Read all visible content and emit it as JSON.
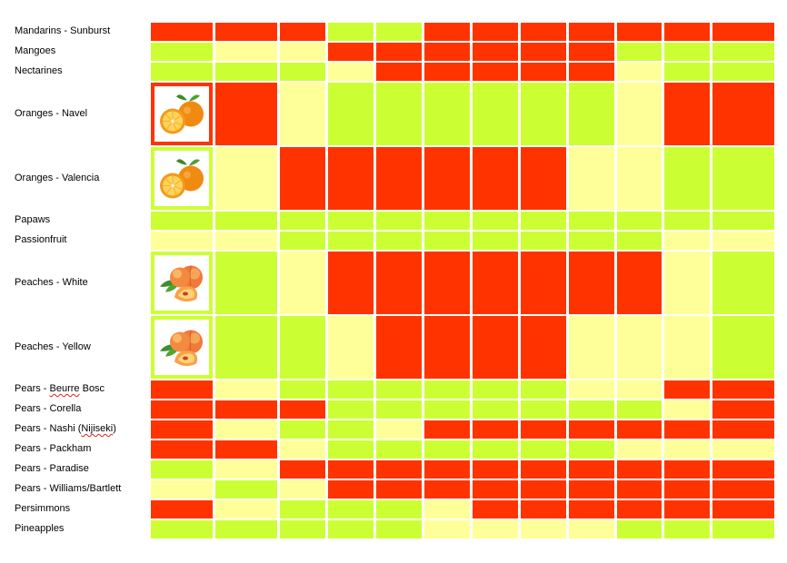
{
  "colors": {
    "R": "#ff3300",
    "G": "#ccff33",
    "Y": "#ffff99"
  },
  "rows": [
    {
      "label": "Mandarins - Sunburst",
      "cells": "RRRGGRRRRRRR"
    },
    {
      "label": "Mangoes",
      "cells": "GYYRRRRRRGGG"
    },
    {
      "label": "Nectarines",
      "cells": "GGGYRRRRRYGG"
    },
    {
      "label": "Oranges - Navel",
      "image": "oranges-photo",
      "cells": "RRYGGGGGGYRR"
    },
    {
      "label": "Oranges - Valencia",
      "image": "oranges-photo",
      "cells": "GYRRRRRRYYGG"
    },
    {
      "label": "Papaws",
      "cells": "GGGGGGGGGGGG"
    },
    {
      "label": "Passionfruit",
      "cells": "YYGGGGGGGGYY"
    },
    {
      "label": "Peaches - White",
      "image": "peaches-photo",
      "cells": "GGYRRRRRRRYG"
    },
    {
      "label": "Peaches - Yellow",
      "image": "peaches-photo",
      "cells": "GGGYRRRRYYYG"
    },
    {
      "label": "Pears - ",
      "label_flag": "Beurre",
      "label_tail": " Bosc",
      "cells": "RYGGGGGGYYRR"
    },
    {
      "label": "Pears - Corella",
      "cells": "RRRGGGGGGGYR"
    },
    {
      "label": "Pears - Nashi (",
      "label_flag": "Nijiseki",
      "label_tail": ")",
      "cells": "RYGGYRRRRRRR"
    },
    {
      "label": "Pears - Packham",
      "cells": "RRYGGGGGGYYY"
    },
    {
      "label": "Pears - Paradise",
      "cells": "GYRRRRRRRRRR"
    },
    {
      "label": "Pears - Williams/Bartlett",
      "cells": "YGYRRRRRRRRR"
    },
    {
      "label": "Persimmons",
      "cells": "RYGGGYRRRRRR"
    },
    {
      "label": "Pineapples",
      "cells": "GGGGGYYYYGGG"
    }
  ]
}
